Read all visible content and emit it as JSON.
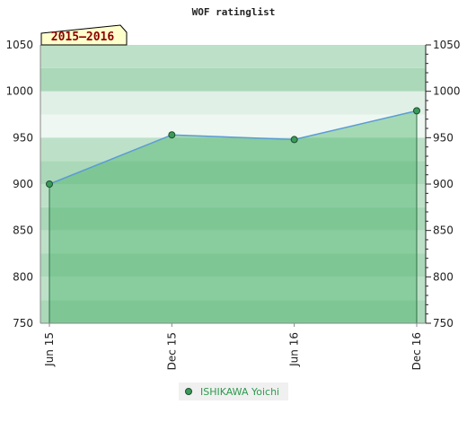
{
  "chart_data": {
    "type": "area",
    "title": "WOF ratinglist",
    "badge": "2015–2016",
    "ylim": [
      750,
      1050
    ],
    "y_ticks": [
      750,
      800,
      850,
      900,
      950,
      1000,
      1050
    ],
    "x_categories": [
      "Jun 15",
      "Dec 15",
      "Jun 16",
      "Dec 16"
    ],
    "series": [
      {
        "name": "ISHIKAWA Yoichi",
        "values": [
          900,
          953,
          948,
          979
        ]
      }
    ],
    "legend_position": "bottom-center",
    "colors": {
      "line": "#5b9bd5",
      "marker": "#3a9a5a",
      "legend_text": "#2e9a4e",
      "badge_bg": "#ffffcc",
      "badge_text": "#8b0000"
    }
  }
}
